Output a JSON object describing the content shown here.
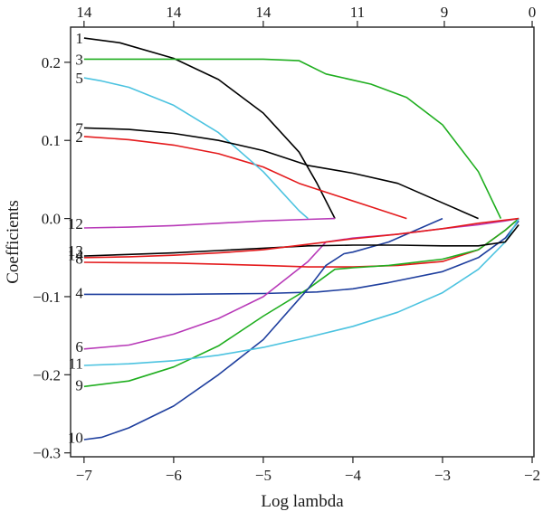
{
  "chart_data": {
    "type": "line",
    "title": "",
    "xlabel": "Log lambda",
    "ylabel": "Coefficients",
    "xlim": [
      -7.15,
      -1.98
    ],
    "ylim": [
      -0.305,
      0.245
    ],
    "x_ticks": [
      -7,
      -6,
      -5,
      -4,
      -3,
      -2
    ],
    "x_tick_labels": [
      "−7",
      "−6",
      "−5",
      "−4",
      "−3",
      "−2"
    ],
    "y_ticks": [
      -0.3,
      -0.2,
      -0.1,
      0.0,
      0.1,
      0.2
    ],
    "y_tick_labels": [
      "−0.3",
      "−0.2",
      "−0.1",
      "0.0",
      "0.1",
      "0.2"
    ],
    "top_ticks": [
      -7.0,
      -6.0,
      -5.0,
      -3.95,
      -2.98,
      -2.0
    ],
    "top_tick_labels": [
      "14",
      "14",
      "14",
      "11",
      "9",
      "0"
    ],
    "grid": false,
    "series": [
      {
        "name": "1",
        "color": "#000000",
        "x": [
          -7.0,
          -6.6,
          -6.0,
          -5.5,
          -5.0,
          -4.6,
          -4.4,
          -4.2
        ],
        "y": [
          0.231,
          0.225,
          0.205,
          0.178,
          0.135,
          0.085,
          0.045,
          0.0
        ]
      },
      {
        "name": "2",
        "color": "#e41a1c",
        "x": [
          -7.0,
          -6.5,
          -6.0,
          -5.5,
          -5.0,
          -4.6,
          -4.2,
          -3.8,
          -3.4
        ],
        "y": [
          0.105,
          0.101,
          0.094,
          0.083,
          0.066,
          0.045,
          0.03,
          0.015,
          0.0
        ]
      },
      {
        "name": "3",
        "color": "#1fae1f",
        "x": [
          -7.0,
          -6.5,
          -6.0,
          -5.0,
          -4.6,
          -4.3,
          -3.8,
          -3.4,
          -3.0,
          -2.6,
          -2.35
        ],
        "y": [
          0.204,
          0.204,
          0.204,
          0.204,
          0.202,
          0.185,
          0.172,
          0.155,
          0.12,
          0.06,
          0.0
        ]
      },
      {
        "name": "4",
        "color": "#1f3f9e",
        "x": [
          -7.0,
          -6.0,
          -5.0,
          -4.4,
          -4.0,
          -3.6,
          -3.0,
          -2.6,
          -2.3,
          -2.15
        ],
        "y": [
          -0.097,
          -0.097,
          -0.096,
          -0.094,
          -0.09,
          -0.082,
          -0.068,
          -0.05,
          -0.025,
          -0.003
        ]
      },
      {
        "name": "5",
        "color": "#4cc3e0",
        "x": [
          -7.0,
          -6.8,
          -6.5,
          -6.0,
          -5.5,
          -5.0,
          -4.8,
          -4.6,
          -4.5
        ],
        "y": [
          0.18,
          0.176,
          0.168,
          0.145,
          0.11,
          0.06,
          0.035,
          0.01,
          0.0
        ]
      },
      {
        "name": "6",
        "color": "#b83ab8",
        "x": [
          -7.0,
          -6.5,
          -6.0,
          -5.5,
          -5.0,
          -4.5,
          -4.3,
          -4.0,
          -3.5,
          -3.0,
          -2.6,
          -2.3,
          -2.15
        ],
        "y": [
          -0.167,
          -0.162,
          -0.148,
          -0.128,
          -0.1,
          -0.055,
          -0.03,
          -0.025,
          -0.02,
          -0.013,
          -0.008,
          -0.003,
          0.0
        ]
      },
      {
        "name": "7",
        "color": "#000000",
        "x": [
          -7.0,
          -6.5,
          -6.0,
          -5.5,
          -5.0,
          -4.5,
          -4.0,
          -3.5,
          -3.0,
          -2.6
        ],
        "y": [
          0.116,
          0.114,
          0.109,
          0.1,
          0.087,
          0.068,
          0.058,
          0.045,
          0.02,
          0.0
        ]
      },
      {
        "name": "8",
        "color": "#e41a1c",
        "x": [
          -7.0,
          -6.0,
          -5.0,
          -4.5,
          -4.0,
          -3.5,
          -3.0,
          -2.6,
          -2.3,
          -2.15
        ],
        "y": [
          -0.056,
          -0.057,
          -0.06,
          -0.062,
          -0.062,
          -0.06,
          -0.055,
          -0.04,
          -0.015,
          0.0
        ]
      },
      {
        "name": "9",
        "color": "#1fae1f",
        "x": [
          -7.0,
          -6.5,
          -6.0,
          -5.5,
          -5.0,
          -4.5,
          -4.2,
          -4.0,
          -3.6,
          -3.0,
          -2.6,
          -2.3,
          -2.15
        ],
        "y": [
          -0.215,
          -0.208,
          -0.19,
          -0.163,
          -0.125,
          -0.09,
          -0.065,
          -0.063,
          -0.06,
          -0.052,
          -0.04,
          -0.015,
          0.0
        ]
      },
      {
        "name": "10",
        "color": "#1f3f9e",
        "x": [
          -7.0,
          -6.8,
          -6.5,
          -6.0,
          -5.5,
          -5.0,
          -4.5,
          -4.3,
          -4.1,
          -4.0,
          -3.6,
          -3.0
        ],
        "y": [
          -0.283,
          -0.28,
          -0.268,
          -0.24,
          -0.2,
          -0.155,
          -0.09,
          -0.06,
          -0.045,
          -0.043,
          -0.03,
          0.0
        ]
      },
      {
        "name": "11",
        "color": "#4cc3e0",
        "x": [
          -7.0,
          -6.5,
          -6.0,
          -5.5,
          -5.0,
          -4.5,
          -4.0,
          -3.5,
          -3.0,
          -2.6,
          -2.3,
          -2.15
        ],
        "y": [
          -0.188,
          -0.186,
          -0.182,
          -0.175,
          -0.165,
          -0.152,
          -0.138,
          -0.12,
          -0.095,
          -0.065,
          -0.03,
          0.0
        ]
      },
      {
        "name": "12",
        "color": "#b83ab8",
        "x": [
          -7.0,
          -6.5,
          -6.0,
          -5.5,
          -5.0,
          -4.5,
          -4.2
        ],
        "y": [
          -0.012,
          -0.011,
          -0.009,
          -0.006,
          -0.003,
          -0.001,
          0.0
        ]
      },
      {
        "name": "13",
        "color": "#000000",
        "x": [
          -7.0,
          -6.5,
          -6.0,
          -5.5,
          -5.0,
          -4.5,
          -4.0,
          -3.5,
          -3.0,
          -2.6,
          -2.3,
          -2.15
        ],
        "y": [
          -0.048,
          -0.046,
          -0.044,
          -0.041,
          -0.038,
          -0.035,
          -0.034,
          -0.034,
          -0.035,
          -0.035,
          -0.03,
          -0.008
        ]
      },
      {
        "name": "14",
        "color": "#e41a1c",
        "x": [
          -7.0,
          -6.5,
          -6.0,
          -5.5,
          -5.0,
          -4.5,
          -4.0,
          -3.5,
          -3.0,
          -2.6,
          -2.3,
          -2.15
        ],
        "y": [
          -0.05,
          -0.049,
          -0.047,
          -0.044,
          -0.04,
          -0.033,
          -0.026,
          -0.02,
          -0.013,
          -0.006,
          -0.002,
          0.0
        ]
      }
    ],
    "labels": [
      {
        "text": "1",
        "x": -7.0,
        "y": 0.231
      },
      {
        "text": "3",
        "x": -7.0,
        "y": 0.204
      },
      {
        "text": "5",
        "x": -7.0,
        "y": 0.18
      },
      {
        "text": "7",
        "x": -7.0,
        "y": 0.116
      },
      {
        "text": "2",
        "x": -7.0,
        "y": 0.105
      },
      {
        "text": "12",
        "x": -7.0,
        "y": -0.006
      },
      {
        "text": "13",
        "x": -7.0,
        "y": -0.041
      },
      {
        "text": "14",
        "x": -7.0,
        "y": -0.046
      },
      {
        "text": "8",
        "x": -7.0,
        "y": -0.051
      },
      {
        "text": "4",
        "x": -7.0,
        "y": -0.095
      },
      {
        "text": "6",
        "x": -7.0,
        "y": -0.164
      },
      {
        "text": "11",
        "x": -7.0,
        "y": -0.185
      },
      {
        "text": "9",
        "x": -7.0,
        "y": -0.213
      },
      {
        "text": "10",
        "x": -7.0,
        "y": -0.28
      }
    ]
  }
}
